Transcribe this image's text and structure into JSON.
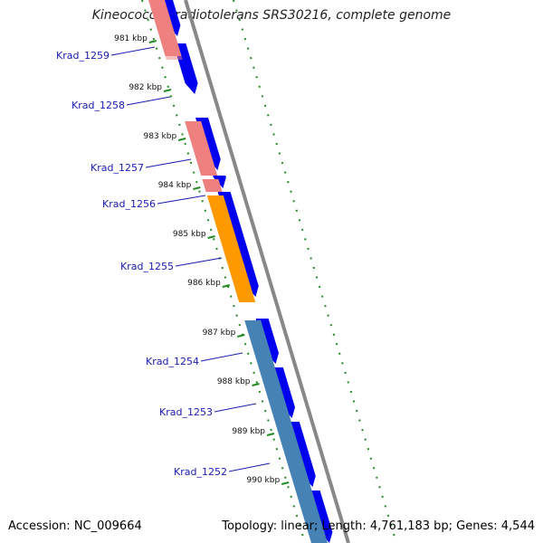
{
  "title": "Kineococcus radiotolerans SRS30216, complete genome",
  "accession_text": "Accession: NC_009664",
  "summary_text": "Topology: linear; Length: 4,761,183 bp; Genes: 4,544",
  "colors": {
    "cds_blue": "#0000ee",
    "pink": "#ee8080",
    "orange": "#ff9900",
    "steelblue": "#4682b4",
    "backbone": "#888888",
    "dotted_track": "#228b22",
    "label_blue": "#1a1ab0"
  },
  "ticks": [
    "981 kbp",
    "982 kbp",
    "983 kbp",
    "984 kbp",
    "985 kbp",
    "986 kbp",
    "987 kbp",
    "988 kbp",
    "989 kbp",
    "990 kbp"
  ],
  "genes": [
    "Krad_1259",
    "Krad_1258",
    "Krad_1257",
    "Krad_1256",
    "Krad_1255",
    "Krad_1254",
    "Krad_1253",
    "Krad_1252"
  ]
}
